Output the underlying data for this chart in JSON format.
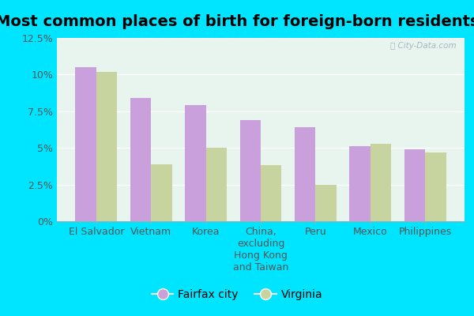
{
  "title": "Most common places of birth for foreign-born residents",
  "categories": [
    "El Salvador",
    "Vietnam",
    "Korea",
    "China,\nexcluding\nHong Kong\nand Taiwan",
    "Peru",
    "Mexico",
    "Philippines"
  ],
  "fairfax_values": [
    10.5,
    8.4,
    7.9,
    6.9,
    6.4,
    5.1,
    4.9
  ],
  "virginia_values": [
    10.2,
    3.9,
    5.0,
    3.8,
    2.5,
    5.3,
    4.7
  ],
  "fairfax_color": "#c9a0dc",
  "virginia_color": "#c8d4a0",
  "background_outer": "#00e5ff",
  "background_inner": "#e8f5ee",
  "ylim": [
    0,
    12.5
  ],
  "yticks": [
    0,
    2.5,
    5.0,
    7.5,
    10.0,
    12.5
  ],
  "ytick_labels": [
    "0%",
    "2.5%",
    "5%",
    "7.5%",
    "10%",
    "12.5%"
  ],
  "legend_labels": [
    "Fairfax city",
    "Virginia"
  ],
  "watermark": "ⓘ City-Data.com",
  "bar_width": 0.38,
  "title_fontsize": 14,
  "axis_fontsize": 9,
  "legend_fontsize": 10
}
